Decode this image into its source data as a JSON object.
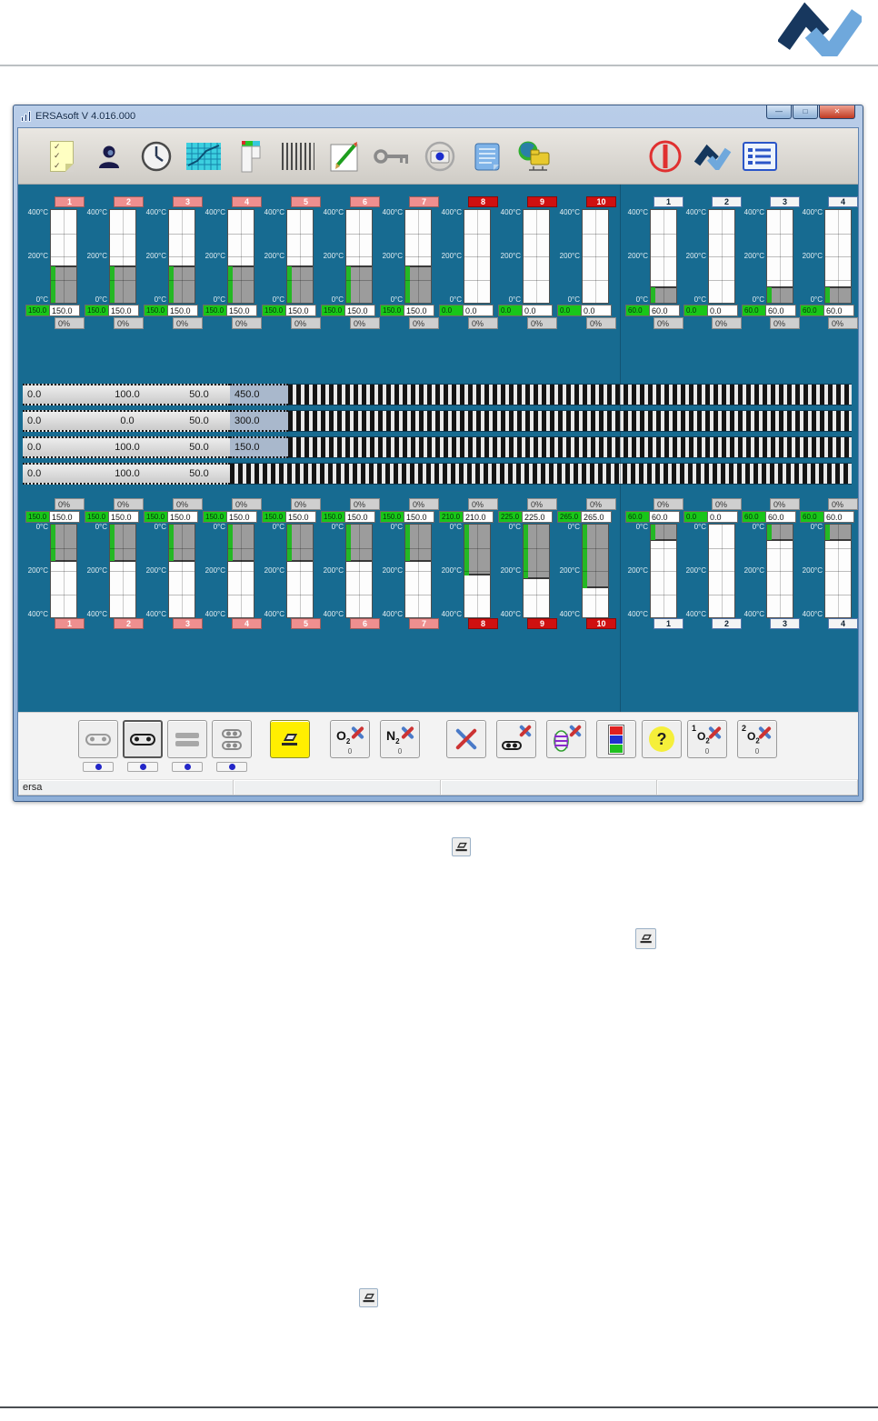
{
  "window": {
    "title": "ERSAsoft V 4.016.000",
    "controls": {
      "minimize": "—",
      "maximize": "□",
      "close": "✕"
    },
    "status_left": "ersa"
  },
  "toolbar": {
    "icons": [
      "checklist-icon",
      "user-icon",
      "clock-icon",
      "process-chart-icon",
      "profile-column-icon",
      "barcode-icon",
      "edit-pencil-icon",
      "key-icon",
      "camera-icon",
      "notepad-icon",
      "network-share-icon",
      "power-off-icon",
      "ersa-logo-icon",
      "list-view-icon"
    ]
  },
  "gauge_scale": {
    "unit": "°C",
    "min": 0,
    "max": 400,
    "ticks": [
      "0°C",
      "200°C",
      "400°C"
    ]
  },
  "upper_heaters": [
    {
      "zone": "1",
      "style": "pink",
      "actual": "150.0",
      "set": "150.0",
      "percent": "0%"
    },
    {
      "zone": "2",
      "style": "pink",
      "actual": "150.0",
      "set": "150.0",
      "percent": "0%"
    },
    {
      "zone": "3",
      "style": "pink",
      "actual": "150.0",
      "set": "150.0",
      "percent": "0%"
    },
    {
      "zone": "4",
      "style": "pink",
      "actual": "150.0",
      "set": "150.0",
      "percent": "0%"
    },
    {
      "zone": "5",
      "style": "pink",
      "actual": "150.0",
      "set": "150.0",
      "percent": "0%"
    },
    {
      "zone": "6",
      "style": "pink",
      "actual": "150.0",
      "set": "150.0",
      "percent": "0%"
    },
    {
      "zone": "7",
      "style": "pink",
      "actual": "150.0",
      "set": "150.0",
      "percent": "0%"
    },
    {
      "zone": "8",
      "style": "red",
      "actual": "0.0",
      "set": "0.0",
      "percent": "0%"
    },
    {
      "zone": "9",
      "style": "red",
      "actual": "0.0",
      "set": "0.0",
      "percent": "0%"
    },
    {
      "zone": "10",
      "style": "red",
      "actual": "0.0",
      "set": "0.0",
      "percent": "0%"
    }
  ],
  "upper_cooling": [
    {
      "zone": "1",
      "style": "plain",
      "actual": "60.0",
      "set": "60.0",
      "percent": "0%"
    },
    {
      "zone": "2",
      "style": "plain",
      "actual": "0.0",
      "set": "0.0",
      "percent": "0%"
    },
    {
      "zone": "3",
      "style": "plain",
      "actual": "60.0",
      "set": "60.0",
      "percent": "0%"
    },
    {
      "zone": "4",
      "style": "plain",
      "actual": "60.0",
      "set": "60.0",
      "percent": "0%"
    }
  ],
  "lower_heaters": [
    {
      "zone": "1",
      "style": "pink",
      "actual": "150.0",
      "set": "150.0",
      "percent": "0%"
    },
    {
      "zone": "2",
      "style": "pink",
      "actual": "150.0",
      "set": "150.0",
      "percent": "0%"
    },
    {
      "zone": "3",
      "style": "pink",
      "actual": "150.0",
      "set": "150.0",
      "percent": "0%"
    },
    {
      "zone": "4",
      "style": "pink",
      "actual": "150.0",
      "set": "150.0",
      "percent": "0%"
    },
    {
      "zone": "5",
      "style": "pink",
      "actual": "150.0",
      "set": "150.0",
      "percent": "0%"
    },
    {
      "zone": "6",
      "style": "pink",
      "actual": "150.0",
      "set": "150.0",
      "percent": "0%"
    },
    {
      "zone": "7",
      "style": "pink",
      "actual": "150.0",
      "set": "150.0",
      "percent": "0%"
    },
    {
      "zone": "8",
      "style": "red",
      "actual": "210.0",
      "set": "210.0",
      "percent": "0%"
    },
    {
      "zone": "9",
      "style": "red",
      "actual": "225.0",
      "set": "225.0",
      "percent": "0%"
    },
    {
      "zone": "10",
      "style": "red",
      "actual": "265.0",
      "set": "265.0",
      "percent": "0%"
    }
  ],
  "lower_cooling": [
    {
      "zone": "1",
      "style": "plain",
      "actual": "60.0",
      "set": "60.0",
      "percent": "0%"
    },
    {
      "zone": "2",
      "style": "plain",
      "actual": "0.0",
      "set": "0.0",
      "percent": "0%"
    },
    {
      "zone": "3",
      "style": "plain",
      "actual": "60.0",
      "set": "60.0",
      "percent": "0%"
    },
    {
      "zone": "4",
      "style": "plain",
      "actual": "60.0",
      "set": "60.0",
      "percent": "0%"
    }
  ],
  "conveyors": [
    {
      "values": [
        "0.0",
        "100.0",
        "50.0"
      ],
      "highlight": "450.0"
    },
    {
      "values": [
        "0.0",
        "0.0",
        "50.0"
      ],
      "highlight": "300.0"
    },
    {
      "values": [
        "0.0",
        "100.0",
        "50.0"
      ],
      "highlight": "150.0"
    },
    {
      "values": [
        "0.0",
        "100.0",
        "50.0"
      ],
      "highlight": null
    }
  ],
  "bottom_toolbar": {
    "buttons": [
      {
        "name": "transport-left",
        "icon": "cart-gray",
        "badge": true
      },
      {
        "name": "transport-right",
        "icon": "cart",
        "badge": true,
        "active": true
      },
      {
        "name": "transport-rails",
        "icon": "rails",
        "badge": true
      },
      {
        "name": "transport-double",
        "icon": "cart2x",
        "badge": true
      },
      {
        "name": "hood",
        "icon": "hood",
        "yellow": true
      },
      {
        "name": "o2-shutoff",
        "icon": "gas",
        "label": "O",
        "sub": "2",
        "count": "0"
      },
      {
        "name": "n2-shutoff",
        "icon": "gas",
        "label": "N",
        "sub": "2",
        "count": "0"
      },
      {
        "name": "service-tools",
        "icon": "tools"
      },
      {
        "name": "service-transport",
        "icon": "cart-tools"
      },
      {
        "name": "service-heating",
        "icon": "coil-tools"
      },
      {
        "name": "display-colors",
        "icon": "colorbars"
      },
      {
        "name": "help",
        "icon": "help",
        "label": "?"
      },
      {
        "name": "o2-sensor-1",
        "icon": "gas",
        "sup": "1",
        "label": "O",
        "sub": "2",
        "count": "0"
      },
      {
        "name": "o2-sensor-2",
        "icon": "gas",
        "sup": "2",
        "label": "O",
        "sub": "2",
        "count": "0"
      }
    ]
  },
  "colors": {
    "panel_teal": "#176b91",
    "zone_pink": "#ef8f8f",
    "zone_red": "#cf1010",
    "actual_green": "#19c619",
    "logo_navy": "#17375e",
    "logo_blue": "#6fa8dc"
  }
}
